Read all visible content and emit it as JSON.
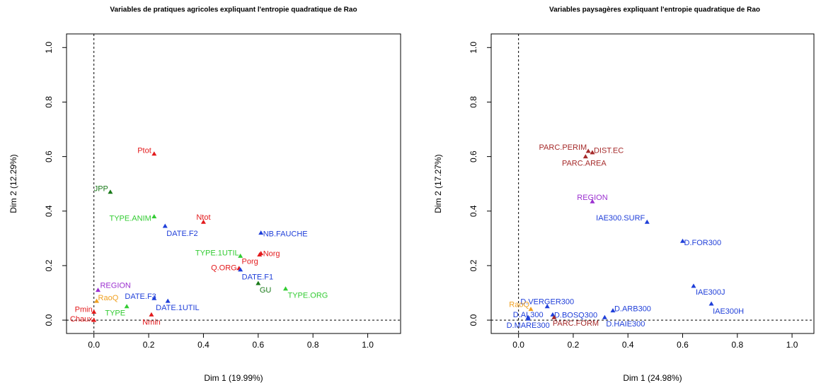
{
  "chart_data": [
    {
      "type": "scatter",
      "title": "Variables de pratiques agricoles expliquant l'entropie quadratique de Rao",
      "xlabel": "Dim 1 (19.99%)",
      "ylabel": "Dim 2 (12.29%)",
      "xlim": [
        -0.1,
        1.12
      ],
      "ylim": [
        -0.049,
        1.05
      ],
      "xticks": [
        {
          "value": 0,
          "label": "0.0"
        },
        {
          "value": 0.2,
          "label": "0.2"
        },
        {
          "value": 0.4,
          "label": "0.4"
        },
        {
          "value": 0.6,
          "label": "0.6"
        },
        {
          "value": 0.8,
          "label": "0.8"
        },
        {
          "value": 1,
          "label": "1.0"
        }
      ],
      "yticks": [
        {
          "value": 0,
          "label": "0.0"
        },
        {
          "value": 0.2,
          "label": "0.2"
        },
        {
          "value": 0.4,
          "label": "0.4"
        },
        {
          "value": 0.6,
          "label": "0.6"
        },
        {
          "value": 0.8,
          "label": "0.8"
        },
        {
          "value": 1,
          "label": "1.0"
        }
      ],
      "labels": [
        "Ptot",
        "JPP",
        "TYPE.ANIM",
        "DATE.F2",
        "Ntot",
        "NB.FAUCHE",
        "TYPE.1UTIL",
        "Norg",
        "Porg",
        "Q.ORG",
        "DATE.F1",
        "GU",
        "TYPE.ORG",
        "REGION",
        "DATE.F3",
        "DATE.1UTIL",
        "RaoQ",
        "TYPE",
        "Pmin",
        "Nmin",
        "Chaux"
      ],
      "x": [
        0.22,
        0.06,
        0.22,
        0.26,
        0.4,
        0.61,
        0.535,
        0.61,
        0.605,
        0.53,
        0.535,
        0.6,
        0.7,
        0.015,
        0.22,
        0.27,
        0.01,
        0.12,
        0,
        0.21,
        0
      ],
      "y": [
        0.61,
        0.47,
        0.38,
        0.345,
        0.36,
        0.32,
        0.235,
        0.245,
        0.24,
        0.19,
        0.185,
        0.135,
        0.115,
        0.11,
        0.08,
        0.07,
        0.07,
        0.05,
        0.03,
        0.02,
        0
      ],
      "colors": [
        "#e31a1c",
        "#1a7a1a",
        "#33cc33",
        "#1f3fd9",
        "#e31a1c",
        "#1f3fd9",
        "#33cc33",
        "#e31a1c",
        "#e31a1c",
        "#e31a1c",
        "#1f3fd9",
        "#1a7a1a",
        "#33cc33",
        "#9b30d0",
        "#1f3fd9",
        "#1f3fd9",
        "#f0a020",
        "#33cc33",
        "#e31a1c",
        "#e31a1c",
        "#e31a1c"
      ]
    },
    {
      "type": "scatter",
      "title": "Variables paysagères expliquant l'entropie quadratique de Rao",
      "xlabel": "Dim 1 (24.98%)",
      "ylabel": "Dim 2 (17.27%)",
      "xlim": [
        -0.1,
        1.08
      ],
      "ylim": [
        -0.049,
        1.05
      ],
      "xticks": [
        {
          "value": 0,
          "label": "0.0"
        },
        {
          "value": 0.2,
          "label": "0.2"
        },
        {
          "value": 0.4,
          "label": "0.4"
        },
        {
          "value": 0.6,
          "label": "0.6"
        },
        {
          "value": 0.8,
          "label": "0.8"
        },
        {
          "value": 1,
          "label": "1.0"
        }
      ],
      "yticks": [
        {
          "value": 0,
          "label": "0.0"
        },
        {
          "value": 0.2,
          "label": "0.2"
        },
        {
          "value": 0.4,
          "label": "0.4"
        },
        {
          "value": 0.6,
          "label": "0.6"
        },
        {
          "value": 0.8,
          "label": "0.8"
        },
        {
          "value": 1,
          "label": "1.0"
        }
      ],
      "labels": [
        "PARC.PERIM",
        "DIST.EC",
        "PARC.AREA",
        "REGION",
        "IAE300.SURF",
        "D.FOR300",
        "IAE300J",
        "IAE300H",
        "D.ARB300",
        "D.VERGER300",
        "RaoQ",
        "D.AL300",
        "D.BOSQ300",
        "D.MARE300",
        "PARC.FORM",
        "D.HAIE300"
      ],
      "x": [
        0.255,
        0.27,
        0.245,
        0.27,
        0.47,
        0.6,
        0.64,
        0.705,
        0.345,
        0.105,
        0.045,
        0.035,
        0.125,
        0.035,
        0.13,
        0.315
      ],
      "y": [
        0.62,
        0.615,
        0.6,
        0.435,
        0.36,
        0.29,
        0.125,
        0.06,
        0.035,
        0.05,
        0.04,
        0.01,
        0.02,
        0.005,
        0.01,
        0.01
      ],
      "colors": [
        "#a52a2a",
        "#a52a2a",
        "#a52a2a",
        "#9b30d0",
        "#1f3fd9",
        "#1f3fd9",
        "#1f3fd9",
        "#1f3fd9",
        "#1f3fd9",
        "#1f3fd9",
        "#f0a020",
        "#1f3fd9",
        "#1f3fd9",
        "#1f3fd9",
        "#a52a2a",
        "#1f3fd9"
      ]
    }
  ]
}
